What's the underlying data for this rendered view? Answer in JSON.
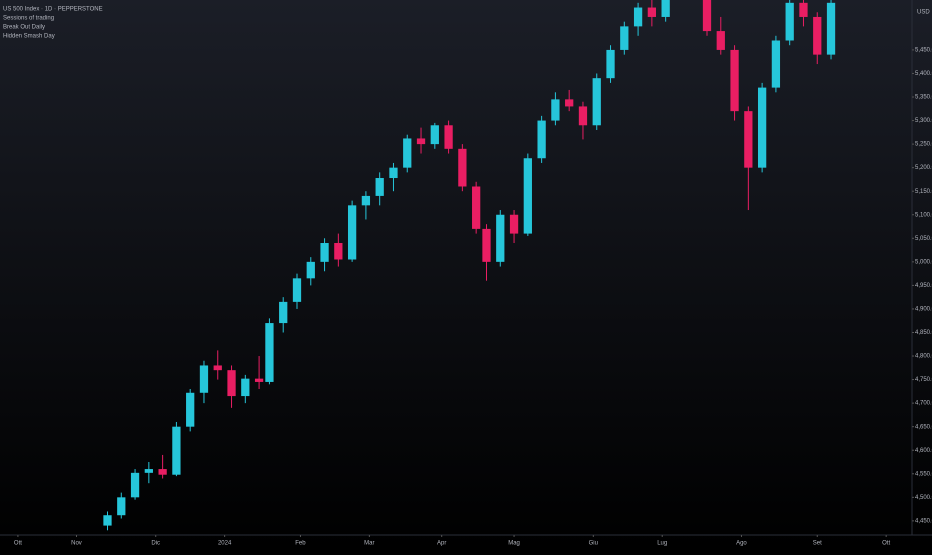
{
  "chart_data": {
    "type": "candlestick",
    "title": "US 500 Index · 1D · PEPPERSTONE",
    "indicators": [
      "Sessions of trading",
      "Break Out Daily",
      "Hidden Smash Day"
    ],
    "currency": "USD",
    "up_color": "#26c6da",
    "down_color": "#e91e63",
    "x": [
      26,
      30,
      34,
      38,
      42,
      46,
      50,
      54,
      58,
      62,
      66,
      70,
      73,
      77,
      81,
      85,
      89,
      93,
      97,
      101,
      105,
      109,
      113,
      117,
      121,
      125,
      129,
      133,
      136,
      140,
      144,
      148,
      152,
      156,
      160,
      164,
      168,
      172,
      176,
      180,
      184,
      188,
      200,
      204,
      208,
      212,
      216,
      220,
      224,
      228,
      232,
      236
    ],
    "open": [
      4440,
      4462,
      4500,
      4552,
      4560,
      4548,
      4650,
      4722,
      4780,
      4770,
      4715,
      4752,
      4745,
      4870,
      4915,
      4965,
      5000,
      5040,
      5005,
      5120,
      5140,
      5178,
      5200,
      5262,
      5250,
      5290,
      5240,
      5160,
      5070,
      5000,
      5100,
      5060,
      5220,
      5300,
      5345,
      5330,
      5290,
      5390,
      5450,
      5500,
      5540,
      5520,
      5560,
      5490,
      5450,
      5320,
      5200,
      5370,
      5470,
      5550,
      5520,
      5440
    ],
    "high": [
      4470,
      4510,
      4560,
      4575,
      4590,
      4660,
      4730,
      4790,
      4812,
      4780,
      4760,
      4800,
      4880,
      4925,
      4975,
      5010,
      5050,
      5060,
      5130,
      5150,
      5190,
      5210,
      5270,
      5285,
      5295,
      5300,
      5250,
      5170,
      5080,
      5110,
      5110,
      5230,
      5310,
      5360,
      5365,
      5340,
      5400,
      5460,
      5510,
      5550,
      5560,
      5570,
      5575,
      5520,
      5460,
      5330,
      5380,
      5480,
      5560,
      5570,
      5530,
      5560
    ],
    "low": [
      4430,
      4455,
      4495,
      4530,
      4540,
      4545,
      4640,
      4700,
      4750,
      4690,
      4700,
      4730,
      4740,
      4850,
      4900,
      4950,
      4980,
      4990,
      5000,
      5090,
      5120,
      5150,
      5190,
      5230,
      5240,
      5230,
      5150,
      5060,
      4960,
      4990,
      5040,
      5055,
      5210,
      5290,
      5320,
      5260,
      5280,
      5380,
      5440,
      5480,
      5500,
      5510,
      5480,
      5440,
      5300,
      5110,
      5190,
      5360,
      5460,
      5500,
      5420,
      5430
    ],
    "close": [
      4462,
      4500,
      4552,
      4560,
      4548,
      4650,
      4722,
      4780,
      4770,
      4715,
      4752,
      4745,
      4870,
      4915,
      4965,
      5000,
      5040,
      5005,
      5120,
      5140,
      5178,
      5200,
      5262,
      5250,
      5290,
      5240,
      5160,
      5070,
      5000,
      5100,
      5060,
      5220,
      5300,
      5345,
      5330,
      5290,
      5390,
      5450,
      5500,
      5540,
      5520,
      5560,
      5490,
      5450,
      5320,
      5200,
      5370,
      5470,
      5550,
      5520,
      5440,
      5550
    ],
    "xlim": [
      -5.2,
      259.5
    ],
    "xticks": [
      {
        "value": 0,
        "label": "Ott"
      },
      {
        "value": 17,
        "label": "Nov"
      },
      {
        "value": 40,
        "label": "Dic"
      },
      {
        "value": 60,
        "label": "2024"
      },
      {
        "value": 82,
        "label": "Feb"
      },
      {
        "value": 102,
        "label": "Mar"
      },
      {
        "value": 123,
        "label": "Apr"
      },
      {
        "value": 144,
        "label": "Mag"
      },
      {
        "value": 167,
        "label": "Giu"
      },
      {
        "value": 187,
        "label": "Lug"
      },
      {
        "value": 210,
        "label": "Ago"
      },
      {
        "value": 232,
        "label": "Set"
      },
      {
        "value": 252,
        "label": "Ott"
      }
    ],
    "ylim": [
      4420,
      5556
    ],
    "yticks": [
      {
        "value": 4450,
        "label": "4,450.0"
      },
      {
        "value": 4500,
        "label": "4,500.0"
      },
      {
        "value": 4550,
        "label": "4,550.0"
      },
      {
        "value": 4600,
        "label": "4,600.0"
      },
      {
        "value": 4650,
        "label": "4,650.0"
      },
      {
        "value": 4700,
        "label": "4,700.0"
      },
      {
        "value": 4750,
        "label": "4,750.0"
      },
      {
        "value": 4800,
        "label": "4,800.0"
      },
      {
        "value": 4850,
        "label": "4,850.0"
      },
      {
        "value": 4900,
        "label": "4,900.0"
      },
      {
        "value": 4950,
        "label": "4,950.0"
      },
      {
        "value": 5000,
        "label": "5,000.0"
      },
      {
        "value": 5050,
        "label": "5,050.0"
      },
      {
        "value": 5100,
        "label": "5,100.0"
      },
      {
        "value": 5150,
        "label": "5,150.0"
      },
      {
        "value": 5200,
        "label": "5,200.0"
      },
      {
        "value": 5250,
        "label": "5,250.0"
      },
      {
        "value": 5300,
        "label": "5,300.0"
      },
      {
        "value": 5350,
        "label": "5,350.0"
      },
      {
        "value": 5400,
        "label": "5,400.0"
      },
      {
        "value": 5450,
        "label": "5,450.0"
      }
    ]
  }
}
